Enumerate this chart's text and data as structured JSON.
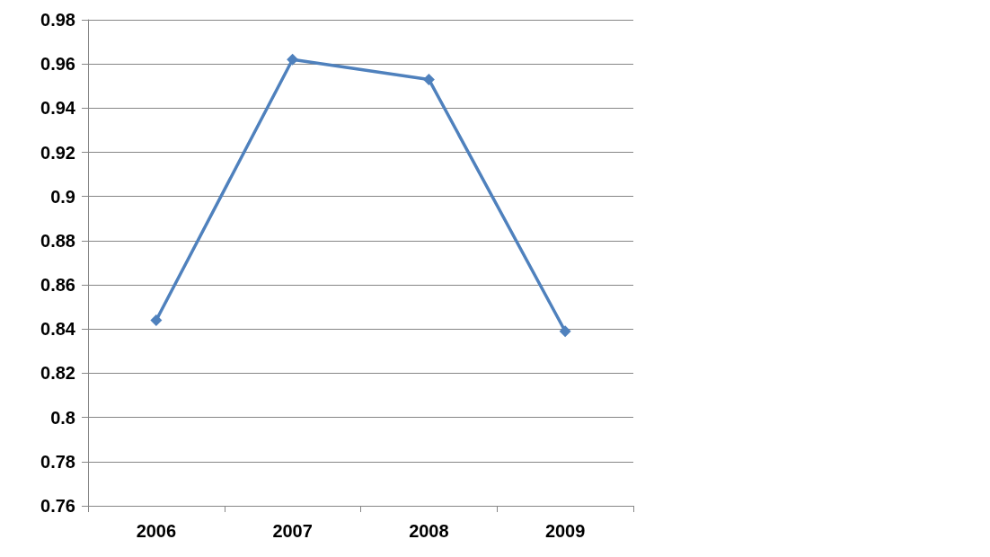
{
  "chart_data": {
    "type": "line",
    "categories": [
      "2006",
      "2007",
      "2008",
      "2009"
    ],
    "series": [
      {
        "color": "#4f81bd",
        "values": [
          0.844,
          0.962,
          0.953,
          0.839
        ]
      }
    ],
    "ylim": [
      0.76,
      0.98
    ],
    "yticks": [
      0.76,
      0.78,
      0.8,
      0.82,
      0.84,
      0.86,
      0.88,
      0.9,
      0.92,
      0.94,
      0.96,
      0.98
    ],
    "grid": "y",
    "marker": "diamond",
    "line_style": "solid"
  }
}
